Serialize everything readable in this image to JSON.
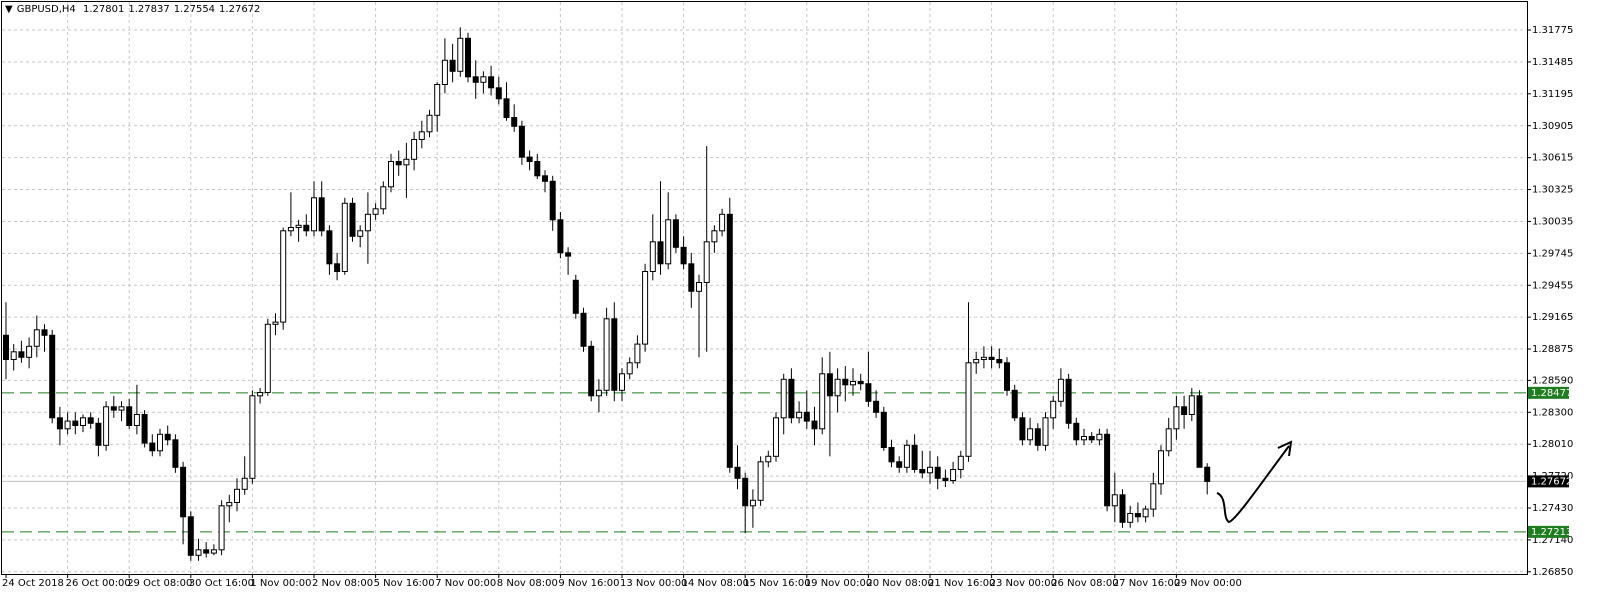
{
  "chart_data": {
    "type": "candlestick",
    "title": "GBPUSD,H4",
    "categories": [
      "24 Oct 2018",
      null,
      null,
      null,
      null,
      null,
      null,
      null,
      "26 Oct 00:00",
      null,
      null,
      null,
      null,
      null,
      null,
      null,
      "29 Oct 08:00",
      null,
      null,
      null,
      null,
      null,
      null,
      null,
      "30 Oct 16:00",
      null,
      null,
      null,
      null,
      null,
      null,
      null,
      "1 Nov 00:00",
      null,
      null,
      null,
      null,
      null,
      null,
      null,
      "2 Nov 08:00",
      null,
      null,
      null,
      null,
      null,
      null,
      null,
      "5 Nov 16:00",
      null,
      null,
      null,
      null,
      null,
      null,
      null,
      "7 Nov 00:00",
      null,
      null,
      null,
      null,
      null,
      null,
      null,
      "8 Nov 08:00",
      null,
      null,
      null,
      null,
      null,
      null,
      null,
      "9 Nov 16:00",
      null,
      null,
      null,
      null,
      null,
      null,
      null,
      "13 Nov 00:00",
      null,
      null,
      null,
      null,
      null,
      null,
      null,
      "14 Nov 08:00",
      null,
      null,
      null,
      null,
      null,
      null,
      null,
      "15 Nov 16:00",
      null,
      null,
      null,
      null,
      null,
      null,
      null,
      "19 Nov 00:00",
      null,
      null,
      null,
      null,
      null,
      null,
      null,
      "20 Nov 08:00",
      null,
      null,
      null,
      null,
      null,
      null,
      null,
      "21 Nov 16:00",
      null,
      null,
      null,
      null,
      null,
      null,
      null,
      "23 Nov 00:00",
      null,
      null,
      null,
      null,
      null,
      null,
      null,
      "26 Nov 08:00",
      null,
      null,
      null,
      null,
      null,
      null,
      null,
      "27 Nov 16:00",
      null,
      null,
      null,
      null,
      null,
      null,
      null,
      "29 Nov 00:00",
      null,
      null,
      null,
      null
    ],
    "open": [
      1.29,
      1.2878,
      1.2885,
      1.288,
      1.289,
      1.2905,
      1.29,
      1.2825,
      1.2815,
      1.2822,
      1.2818,
      1.2825,
      1.282,
      1.28,
      1.2835,
      1.2832,
      1.2835,
      1.2818,
      1.2828,
      1.2802,
      1.2795,
      1.281,
      1.2805,
      1.278,
      1.2735,
      1.27,
      1.2705,
      1.2702,
      1.2705,
      1.2745,
      1.2748,
      1.276,
      1.277,
      1.2845,
      1.2848,
      1.291,
      1.2912,
      1.2995,
      1.2998,
      1.3,
      1.2995,
      1.3025,
      1.2995,
      1.2965,
      1.2958,
      1.302,
      1.299,
      1.2995,
      1.301,
      1.3015,
      1.3035,
      1.3058,
      1.3055,
      1.306,
      1.3078,
      1.3085,
      1.31,
      1.3128,
      1.315,
      1.314,
      1.317,
      1.3135,
      1.313,
      1.3135,
      1.3125,
      1.3115,
      1.3098,
      1.309,
      1.3062,
      1.3058,
      1.3045,
      1.304,
      1.3005,
      1.2975,
      1.295,
      1.292,
      1.289,
      1.2845,
      1.285,
      1.2915,
      1.285,
      1.2865,
      1.2875,
      1.2892,
      1.2958,
      1.2985,
      1.2965,
      1.3005,
      1.298,
      1.2965,
      1.294,
      1.2948,
      1.2985,
      1.2995,
      1.301,
      1.278,
      1.277,
      1.2745,
      1.275,
      1.2785,
      1.279,
      1.2825,
      1.286,
      1.2825,
      1.283,
      1.2822,
      1.2815,
      1.2865,
      1.2845,
      1.286,
      1.2855,
      1.2858,
      1.2856,
      1.284,
      1.283,
      1.2798,
      1.2785,
      1.278,
      1.28,
      1.2778,
      1.2775,
      1.278,
      1.277,
      1.2768,
      1.2778,
      1.279,
      1.2875,
      1.2878,
      1.288,
      1.2878,
      1.2875,
      1.285,
      1.2825,
      1.2805,
      1.2815,
      1.28,
      1.2825,
      1.284,
      1.286,
      1.282,
      1.2805,
      1.2808,
      1.2805,
      1.281,
      1.2745,
      1.2755,
      1.273,
      1.2738,
      1.2735,
      1.2742,
      1.2765,
      1.2795,
      1.2815,
      1.2835,
      1.2828,
      1.2845,
      1.27801
    ],
    "high": [
      1.293,
      1.2892,
      1.2895,
      1.2898,
      1.2918,
      1.291,
      1.2905,
      1.2835,
      1.283,
      1.283,
      1.2828,
      1.283,
      1.2825,
      1.284,
      1.2845,
      1.284,
      1.2842,
      1.2855,
      1.2832,
      1.281,
      1.2815,
      1.2818,
      1.281,
      1.2785,
      1.274,
      1.2715,
      1.2712,
      1.271,
      1.275,
      1.2755,
      1.277,
      1.279,
      1.285,
      1.2852,
      1.2915,
      1.292,
      1.2998,
      1.303,
      1.3005,
      1.301,
      1.304,
      1.304,
      1.3,
      1.2975,
      1.3025,
      1.3025,
      1.3,
      1.303,
      1.302,
      1.304,
      1.3065,
      1.3068,
      1.3075,
      1.3085,
      1.3095,
      1.3105,
      1.313,
      1.317,
      1.3165,
      1.318,
      1.3175,
      1.315,
      1.314,
      1.3145,
      1.3135,
      1.313,
      1.311,
      1.3095,
      1.3068,
      1.3065,
      1.305,
      1.3045,
      1.3012,
      1.298,
      1.2955,
      1.2925,
      1.2895,
      1.286,
      1.2925,
      1.293,
      1.287,
      1.288,
      1.29,
      1.2965,
      1.301,
      1.304,
      1.303,
      1.301,
      1.299,
      1.2975,
      1.2955,
      1.3072,
      1.3,
      1.3015,
      1.3025,
      1.28,
      1.2775,
      1.276,
      1.279,
      1.2795,
      1.283,
      1.2865,
      1.287,
      1.284,
      1.285,
      1.2835,
      1.288,
      1.2885,
      1.287,
      1.2872,
      1.287,
      1.2865,
      1.2885,
      1.285,
      1.2835,
      1.2805,
      1.279,
      1.2805,
      1.281,
      1.2795,
      1.2795,
      1.279,
      1.2778,
      1.2785,
      1.2795,
      1.293,
      1.2885,
      1.289,
      1.289,
      1.2888,
      1.288,
      1.2855,
      1.283,
      1.2825,
      1.282,
      1.283,
      1.2845,
      1.287,
      1.2865,
      1.2825,
      1.2815,
      1.2812,
      1.2815,
      1.2815,
      1.2775,
      1.276,
      1.2745,
      1.2748,
      1.2745,
      1.2775,
      1.28,
      1.2825,
      1.2845,
      1.2845,
      1.2852,
      1.285,
      1.27837
    ],
    "low": [
      1.286,
      1.2868,
      1.2875,
      1.287,
      1.288,
      1.2885,
      1.282,
      1.28,
      1.281,
      1.281,
      1.2812,
      1.2815,
      1.279,
      1.2795,
      1.2825,
      1.2822,
      1.2815,
      1.281,
      1.2798,
      1.279,
      1.279,
      1.28,
      1.2775,
      1.271,
      1.2695,
      1.2695,
      1.2698,
      1.27,
      1.27,
      1.273,
      1.274,
      1.2755,
      1.2765,
      1.2838,
      1.2845,
      1.29,
      1.2905,
      1.299,
      1.2985,
      1.299,
      1.299,
      1.299,
      1.2955,
      1.295,
      1.2955,
      1.2985,
      1.298,
      1.2965,
      1.3005,
      1.301,
      1.303,
      1.3045,
      1.3025,
      1.305,
      1.307,
      1.308,
      1.3085,
      1.312,
      1.313,
      1.3135,
      1.313,
      1.3115,
      1.312,
      1.3118,
      1.311,
      1.3095,
      1.3085,
      1.3055,
      1.305,
      1.3042,
      1.303,
      1.2995,
      1.297,
      1.2955,
      1.2915,
      1.2885,
      1.284,
      1.283,
      1.2845,
      1.284,
      1.284,
      1.286,
      1.287,
      1.2885,
      1.295,
      1.2955,
      1.296,
      1.2975,
      1.296,
      1.2925,
      1.288,
      1.2885,
      1.2975,
      1.299,
      1.2775,
      1.276,
      1.272,
      1.2725,
      1.2745,
      1.278,
      1.2785,
      1.281,
      1.282,
      1.282,
      1.2815,
      1.28,
      1.281,
      1.279,
      1.283,
      1.284,
      1.2845,
      1.285,
      1.2835,
      1.2825,
      1.2795,
      1.278,
      1.2775,
      1.2775,
      1.2775,
      1.277,
      1.2765,
      1.276,
      1.2762,
      1.2765,
      1.277,
      1.2785,
      1.2865,
      1.287,
      1.287,
      1.287,
      1.2845,
      1.2822,
      1.28,
      1.28,
      1.2795,
      1.2795,
      1.2815,
      1.2835,
      1.2815,
      1.28,
      1.28,
      1.2802,
      1.28,
      1.274,
      1.273,
      1.2725,
      1.2725,
      1.273,
      1.273,
      1.2735,
      1.2755,
      1.279,
      1.2805,
      1.2815,
      1.2822,
      1.278,
      1.27554
    ],
    "close": [
      1.2878,
      1.2885,
      1.288,
      1.289,
      1.2905,
      1.29,
      1.2825,
      1.2815,
      1.2822,
      1.2818,
      1.2825,
      1.282,
      1.28,
      1.2835,
      1.2832,
      1.2835,
      1.2818,
      1.2828,
      1.2802,
      1.2795,
      1.281,
      1.2805,
      1.278,
      1.2735,
      1.27,
      1.2705,
      1.2702,
      1.2705,
      1.2745,
      1.2748,
      1.276,
      1.277,
      1.2845,
      1.2848,
      1.291,
      1.2912,
      1.2995,
      1.2998,
      1.3,
      1.2995,
      1.3025,
      1.2995,
      1.2965,
      1.2958,
      1.302,
      1.299,
      1.2995,
      1.301,
      1.3015,
      1.3035,
      1.3058,
      1.3055,
      1.306,
      1.3078,
      1.3085,
      1.31,
      1.3128,
      1.315,
      1.314,
      1.317,
      1.3135,
      1.313,
      1.3135,
      1.3125,
      1.3115,
      1.3098,
      1.309,
      1.3062,
      1.3058,
      1.3045,
      1.304,
      1.3005,
      1.2975,
      1.2972,
      1.292,
      1.289,
      1.2845,
      1.285,
      1.2915,
      1.285,
      1.2865,
      1.2875,
      1.2892,
      1.2958,
      1.2985,
      1.2965,
      1.3005,
      1.298,
      1.2965,
      1.294,
      1.2948,
      1.2985,
      1.2995,
      1.301,
      1.278,
      1.277,
      1.2745,
      1.275,
      1.2785,
      1.279,
      1.2825,
      1.286,
      1.2825,
      1.283,
      1.2822,
      1.2815,
      1.2865,
      1.2845,
      1.286,
      1.2855,
      1.2858,
      1.2856,
      1.284,
      1.283,
      1.2798,
      1.2785,
      1.278,
      1.28,
      1.2778,
      1.2775,
      1.278,
      1.277,
      1.2768,
      1.2778,
      1.279,
      1.2875,
      1.2878,
      1.288,
      1.2878,
      1.2875,
      1.285,
      1.2825,
      1.2805,
      1.2815,
      1.28,
      1.2825,
      1.284,
      1.286,
      1.282,
      1.2805,
      1.2808,
      1.2805,
      1.281,
      1.2745,
      1.2755,
      1.273,
      1.2738,
      1.2735,
      1.2742,
      1.2765,
      1.2795,
      1.2815,
      1.2835,
      1.2828,
      1.2845,
      1.278,
      1.27672
    ],
    "up_color": "#ffffff",
    "down_color": "#000000",
    "line_color": "#000000",
    "levels": [
      1.28477,
      1.27213
    ],
    "level_color": "#1e7d1e",
    "current_line_color": "#c0c0c0",
    "grid": true,
    "grid_color": "#c6c6c6",
    "ylim": [
      1.2683,
      1.3203
    ],
    "yticks": [
      1.31775,
      1.31485,
      1.31195,
      1.30905,
      1.30615,
      1.30325,
      1.30035,
      1.29745,
      1.29455,
      1.29165,
      1.28875,
      {
        "value": 1.2859,
        "label": "1.28590"
      },
      {
        "value": 1.283,
        "label": "1.28300"
      },
      {
        "value": 1.2801,
        "label": "1.28010"
      },
      {
        "value": 1.2772,
        "label": "1.27720"
      },
      {
        "value": 1.2743,
        "label": "1.27430"
      },
      {
        "value": 1.2714,
        "label": "1.27140"
      },
      {
        "value": 1.2685,
        "label": "1.26850"
      }
    ]
  }
}
